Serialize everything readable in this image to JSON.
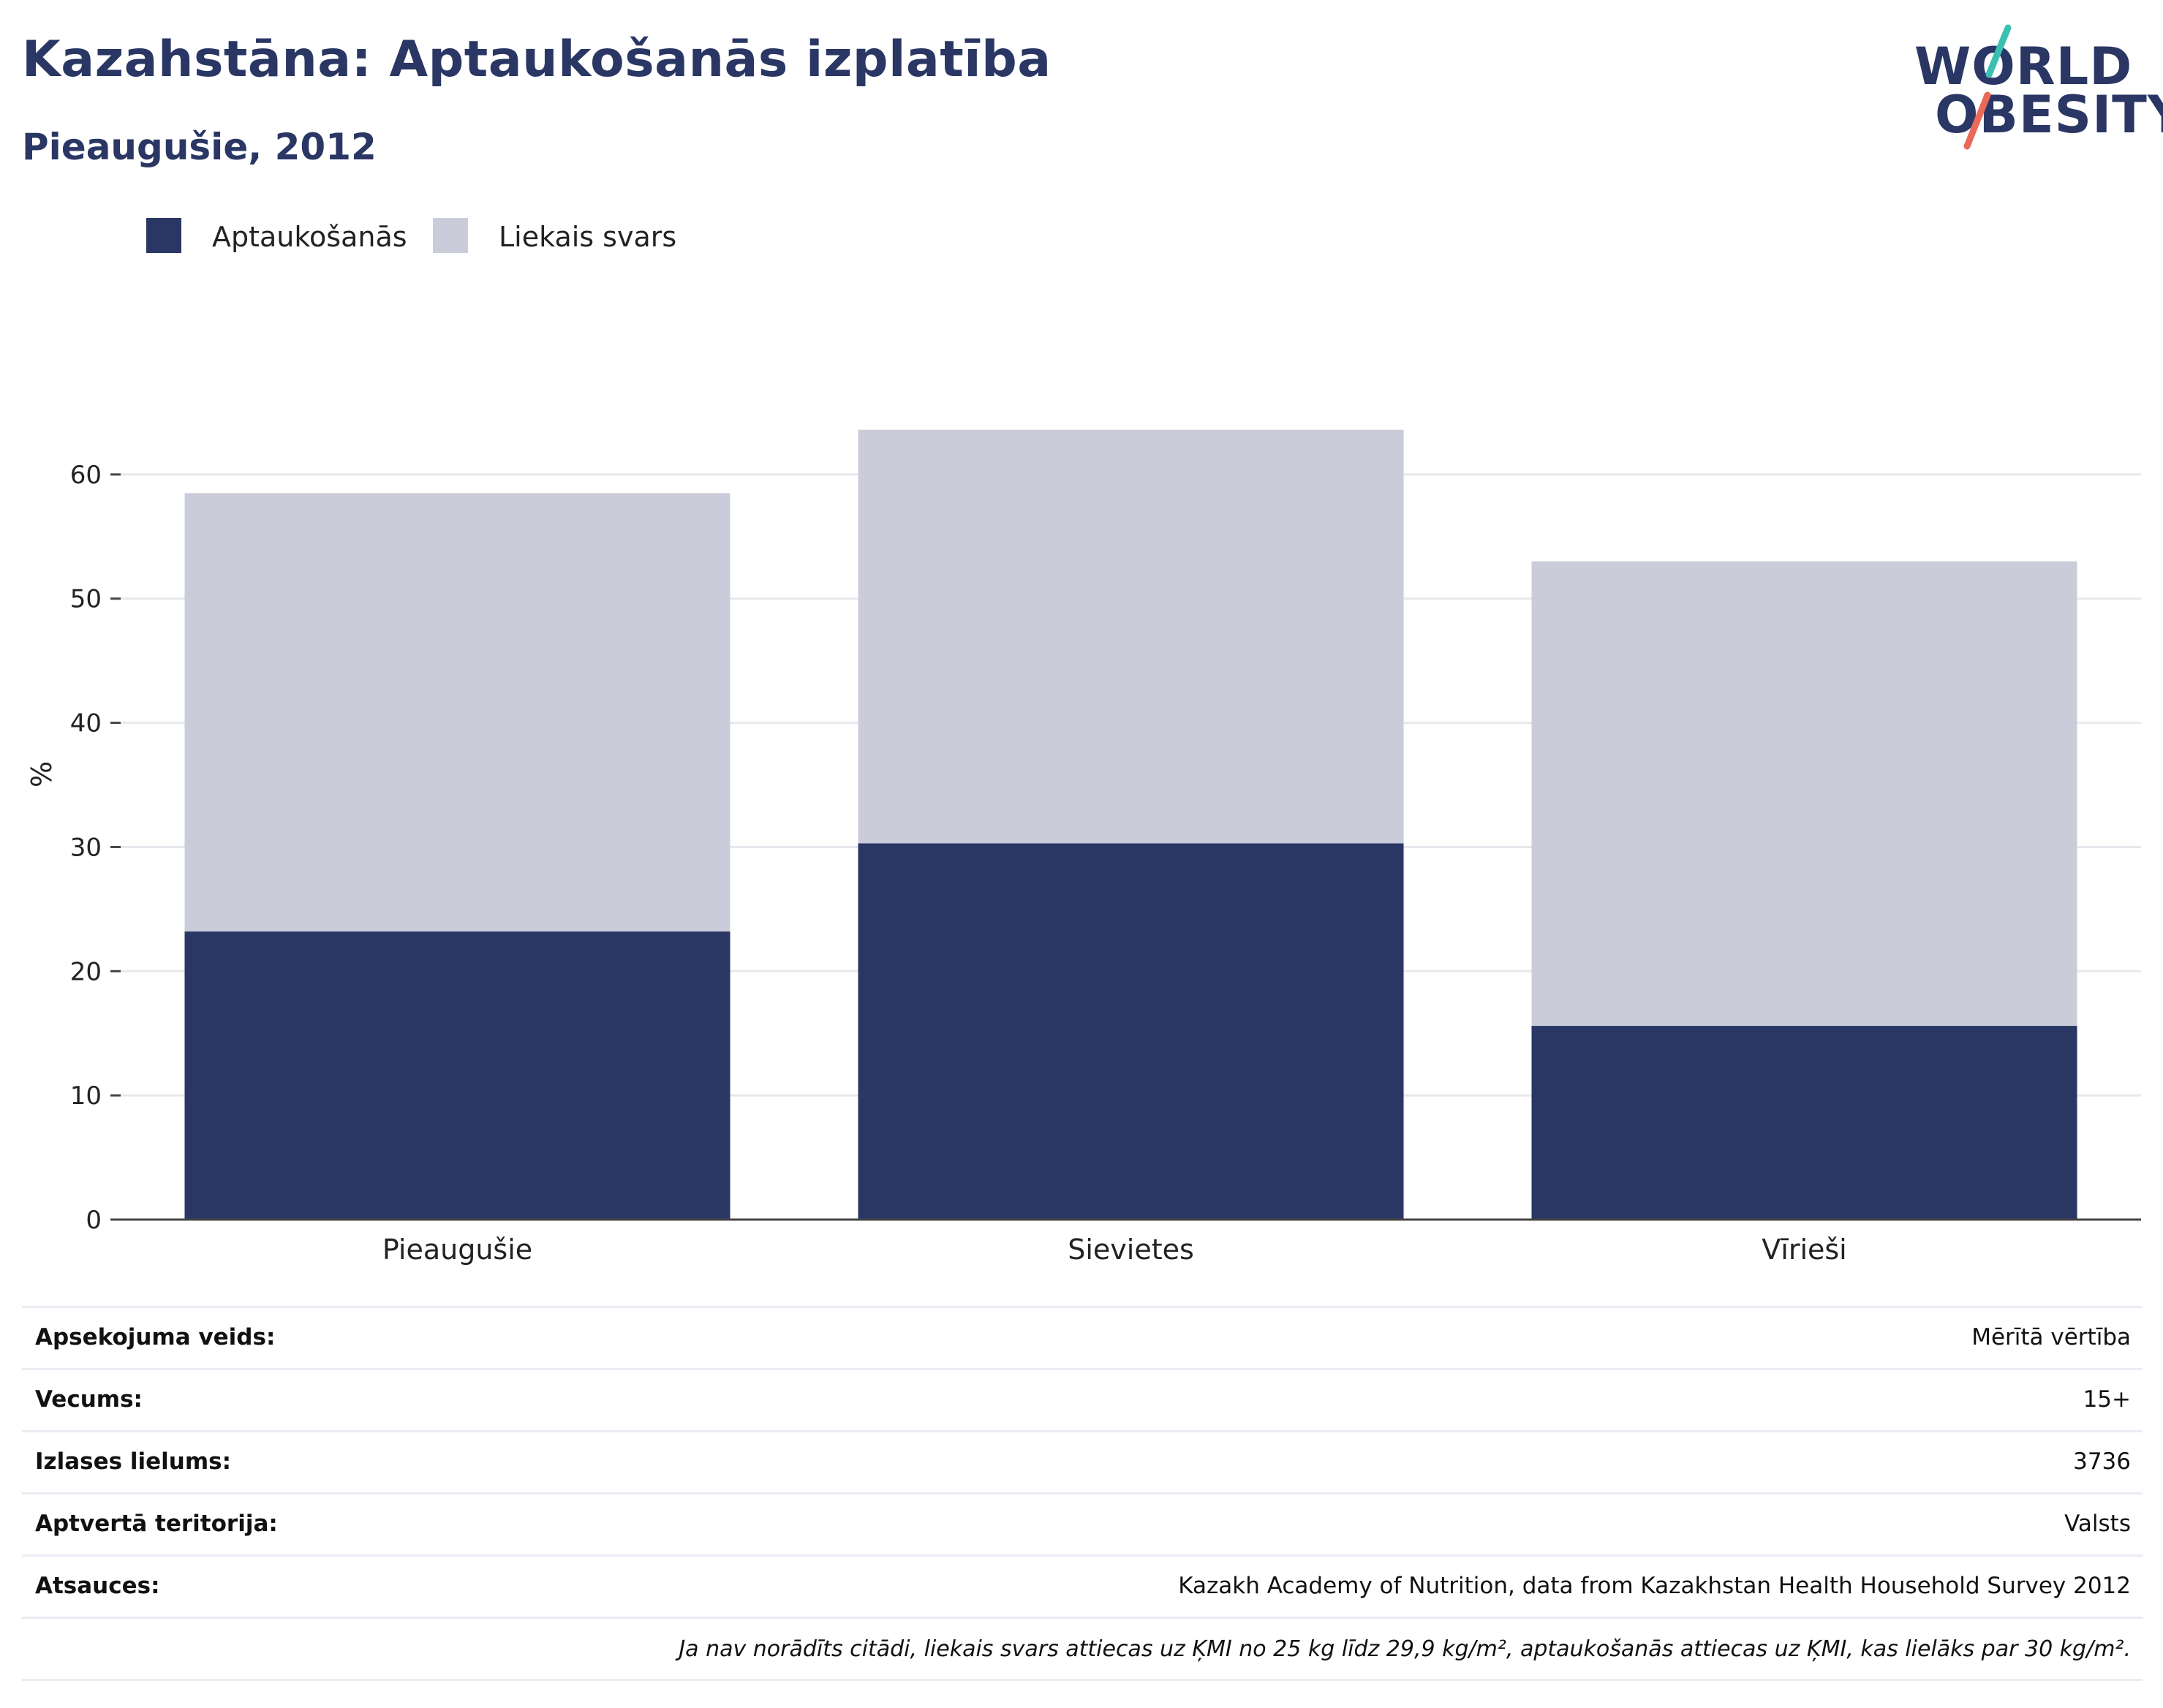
{
  "header": {
    "title": "Kazahstāna: Aptaukošanās izplatība",
    "subtitle": "Pieaugušie, 2012"
  },
  "logo": {
    "line1": "WORLD",
    "line2": "OBESITY",
    "colors": {
      "text": "#2a3764",
      "teal": "#3bbfb1",
      "coral": "#ea6a5a"
    }
  },
  "colors": {
    "obesity": "#2a3764",
    "overweight": "#cacdd9",
    "grid": "#e8e8ee",
    "axis": "#444444"
  },
  "chart_data": {
    "type": "bar",
    "stacked": true,
    "categories": [
      "Pieaugušie",
      "Sievietes",
      "Vīrieši"
    ],
    "series": [
      {
        "name": "Aptaukošanās",
        "values": [
          23.2,
          30.3,
          15.6
        ],
        "color": "#2a3764"
      },
      {
        "name": "Liekais svars",
        "values": [
          35.3,
          33.3,
          37.4
        ],
        "color": "#cacdd9"
      }
    ],
    "ylabel": "%",
    "xlabel": "",
    "ylim": [
      0,
      67
    ],
    "yticks": [
      0,
      10,
      20,
      30,
      40,
      50,
      60
    ],
    "grid": true,
    "legend_position": "top-left"
  },
  "info": {
    "rows": [
      {
        "key": "Apsekojuma veids:",
        "value": "Mērītā vērtība"
      },
      {
        "key": "Vecums:",
        "value": "15+"
      },
      {
        "key": "Izlases lielums:",
        "value": "3736"
      },
      {
        "key": "Aptvertā teritorija:",
        "value": "Valsts"
      },
      {
        "key": "Atsauces:",
        "value": "Kazakh Academy of Nutrition, data from Kazakhstan Health Household Survey 2012"
      }
    ],
    "note": "Ja nav norādīts citādi, liekais svars attiecas uz ĶMI no 25 kg līdz 29,9 kg/m², aptaukošanās attiecas uz ĶMI, kas lielāks par 30 kg/m²."
  }
}
